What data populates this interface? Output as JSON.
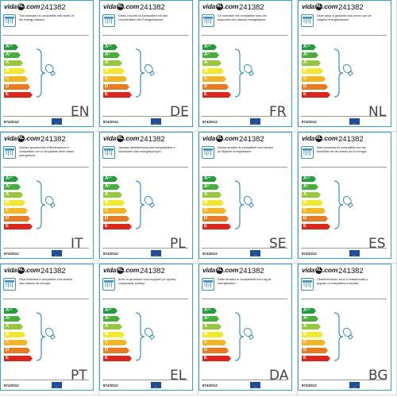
{
  "logo": {
    "prefix": "vida",
    "x": "XL",
    "suffix": ".com"
  },
  "model_number": "241382",
  "regulation": "874/2012",
  "classes": [
    "A++",
    "A+",
    "A",
    "B",
    "C",
    "D",
    "E"
  ],
  "class_colors": [
    "#1f9e3a",
    "#46b039",
    "#97c83c",
    "#f3e928",
    "#f6b51e",
    "#ec7a1d",
    "#e2231a"
  ],
  "brace_color": "#3a8fc8",
  "eu_flag_color": "#1d4fa0",
  "labels": [
    {
      "lang": "EN",
      "desc": "This luminaire is compatible with bulbs of the energy classes:"
    },
    {
      "lang": "DE",
      "desc": "Diese Leuchte ist kompatibel mit den Leuchtmitteln der Energieklassen:"
    },
    {
      "lang": "FR",
      "desc": "Ce luminaire est compatible avec les ampoules des classes énergétiques:"
    },
    {
      "lang": "NL",
      "desc": "Deze lamp is geschikt voor peren van de volgend energieklassen:"
    },
    {
      "lang": "IT",
      "desc": "Questo apparecchio d'illuminazione è compatibile con le lampadine delle classi energetiche:"
    },
    {
      "lang": "PL",
      "desc": "Oprawa oświetleniowa jest kompatybilna z żarówkami klas energetycznych:"
    },
    {
      "lang": "SE",
      "desc": "Denna armatur är kompatibel med lampor av följande energiklasser:"
    },
    {
      "lang": "ES",
      "desc": "Esta luminaria es compatible con las bombillas de las clases de la energía:"
    },
    {
      "lang": "PT",
      "desc": "Esta luminária é compatível com bulbos das classes de energia:"
    },
    {
      "lang": "EL",
      "desc": "Αυτό το φωτιστικό είναι συμβατό με λάμπες ενεργειακής κλάσης:"
    },
    {
      "lang": "DA",
      "desc": "Dette armatur er kompatibelt med lag af energiklasser:"
    },
    {
      "lang": "BG",
      "desc": "Осветителното тяло е съвместимо с крушки от енергийни класове:"
    }
  ]
}
